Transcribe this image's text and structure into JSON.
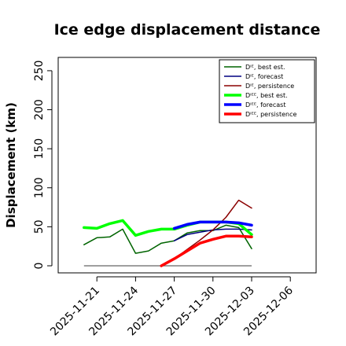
{
  "chart_data": {
    "type": "line",
    "title": "Ice edge displacement distance",
    "ylabel": "Displacement (km)",
    "xlabel": "",
    "ylim": [
      0,
      260
    ],
    "xlim": [
      "2025-11-18",
      "2025-12-08"
    ],
    "yticks": [
      "0",
      "50",
      "100",
      "150",
      "200",
      "250"
    ],
    "xticks": [
      {
        "date": "2025-11-21",
        "label": "2025-11-21",
        "color": "#000000"
      },
      {
        "date": "2025-11-24",
        "label": "2025-11-24",
        "color": "#000000"
      },
      {
        "date": "2025-11-27",
        "label": "2025-11-27",
        "color": "#228b22"
      },
      {
        "date": "2025-11-30",
        "label": "2025-11-30",
        "color": "#000000"
      },
      {
        "date": "2025-12-03",
        "label": "2025-12-03",
        "color": "#000000"
      },
      {
        "date": "2025-12-06",
        "label": "2025-12-06",
        "color": "#000000"
      }
    ],
    "legend_position": "top-right",
    "grid": false,
    "reference_line": {
      "y": 0,
      "x_start": "2025-11-20",
      "x_end": "2025-12-03",
      "color": "#666666"
    },
    "series": [
      {
        "name": "Dᴵᴱ, best est.",
        "color": "#006400",
        "width": 1.5,
        "x": [
          "2025-11-20",
          "2025-11-21",
          "2025-11-22",
          "2025-11-23",
          "2025-11-24",
          "2025-11-25",
          "2025-11-26",
          "2025-11-27",
          "2025-11-28",
          "2025-11-29",
          "2025-11-30",
          "2025-12-01",
          "2025-12-02",
          "2025-12-03"
        ],
        "y": [
          27,
          36,
          37,
          47,
          16,
          19,
          29,
          32,
          42,
          45,
          45,
          52,
          49,
          22
        ]
      },
      {
        "name": "Dᴵᴱ, forecast",
        "color": "#000080",
        "width": 1.5,
        "x": [
          "2025-11-27",
          "2025-11-28",
          "2025-11-29",
          "2025-11-30",
          "2025-12-01",
          "2025-12-02",
          "2025-12-03"
        ],
        "y": [
          32,
          40,
          43,
          46,
          47,
          47,
          46
        ]
      },
      {
        "name": "Dᴵᴱ, persistence",
        "color": "#8b0000",
        "width": 1.5,
        "x": [
          "2025-11-26",
          "2025-11-27",
          "2025-11-28",
          "2025-11-29",
          "2025-11-30",
          "2025-12-01",
          "2025-12-02",
          "2025-12-03"
        ],
        "y": [
          0,
          9,
          21,
          33,
          46,
          62,
          84,
          74
        ]
      },
      {
        "name": "Dᴵᴱᴱ, best est.",
        "color": "#00ff00",
        "width": 3.5,
        "x": [
          "2025-11-20",
          "2025-11-21",
          "2025-11-22",
          "2025-11-23",
          "2025-11-24",
          "2025-11-25",
          "2025-11-26",
          "2025-11-27",
          "2025-11-28",
          "2025-11-29",
          "2025-11-30",
          "2025-12-01",
          "2025-12-02",
          "2025-12-03"
        ],
        "y": [
          49,
          48,
          54,
          58,
          39,
          44,
          47,
          47,
          52,
          56,
          56,
          56,
          54,
          40
        ]
      },
      {
        "name": "Dᴵᴱᴱ, forecast",
        "color": "#0000ff",
        "width": 3.5,
        "x": [
          "2025-11-27",
          "2025-11-28",
          "2025-11-29",
          "2025-11-30",
          "2025-12-01",
          "2025-12-02",
          "2025-12-03"
        ],
        "y": [
          48,
          53,
          56,
          56,
          56,
          55,
          52
        ]
      },
      {
        "name": "Dᴵᴱᴱ, persistence",
        "color": "#ff0000",
        "width": 3.5,
        "x": [
          "2025-11-26",
          "2025-11-27",
          "2025-11-28",
          "2025-11-29",
          "2025-11-30",
          "2025-12-01",
          "2025-12-02",
          "2025-12-03"
        ],
        "y": [
          0,
          9,
          19,
          29,
          34,
          38,
          38,
          37
        ]
      }
    ]
  }
}
